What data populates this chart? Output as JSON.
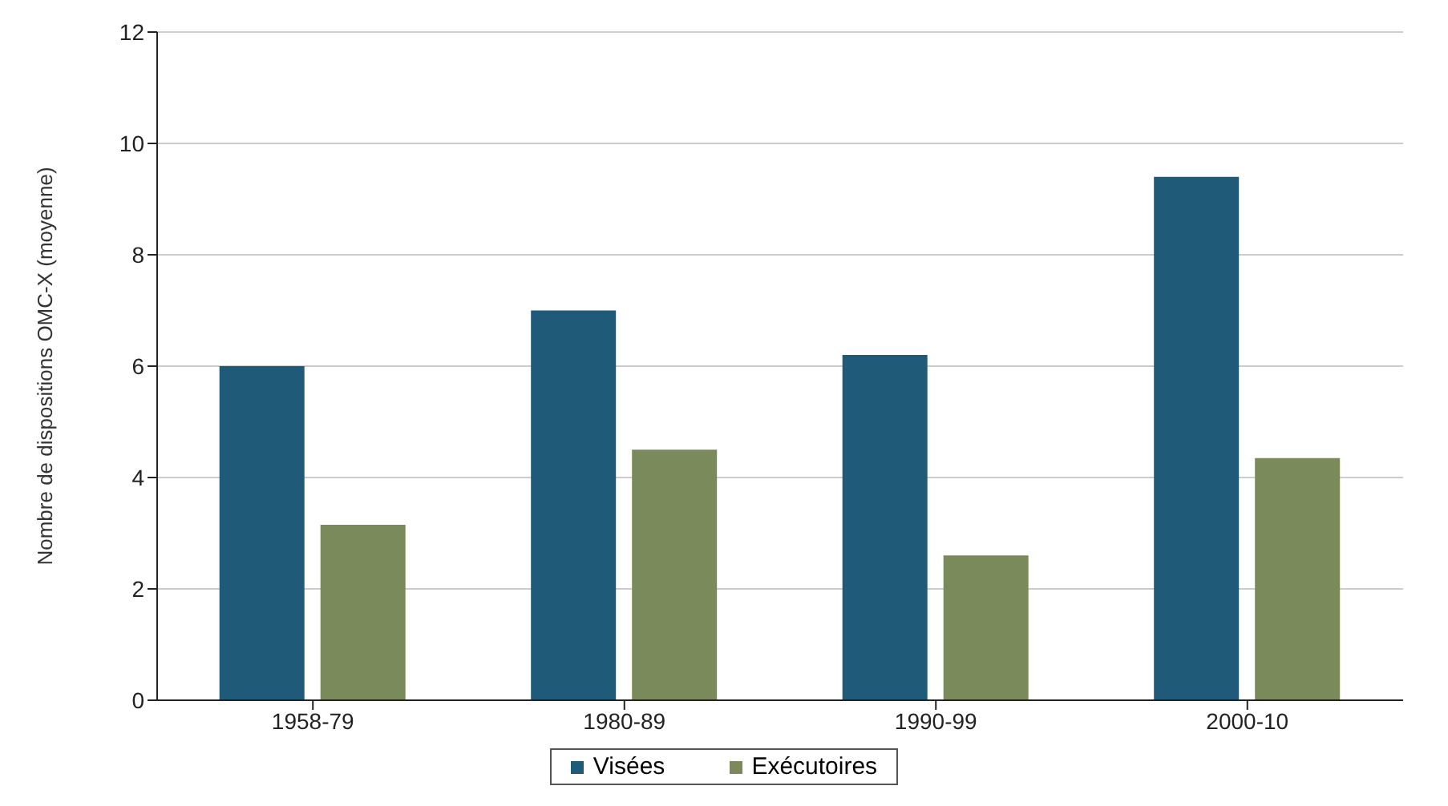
{
  "chart_data": {
    "type": "bar",
    "ylabel": "Nombre de dispositions OMC-X (moyenne)",
    "categories": [
      "1958-79",
      "1980-89",
      "1990-99",
      "2000-10"
    ],
    "series": [
      {
        "name": "Visées",
        "color": "#1f5a78",
        "values": [
          6.0,
          7.0,
          6.2,
          9.4
        ]
      },
      {
        "name": "Exécutoires",
        "color": "#7a8a5a",
        "values": [
          3.15,
          4.5,
          2.6,
          4.35
        ]
      }
    ],
    "ylim": [
      0,
      12
    ],
    "yticks": [
      0,
      2,
      4,
      6,
      8,
      10,
      12
    ],
    "grid": "y",
    "legend": "bottom"
  }
}
